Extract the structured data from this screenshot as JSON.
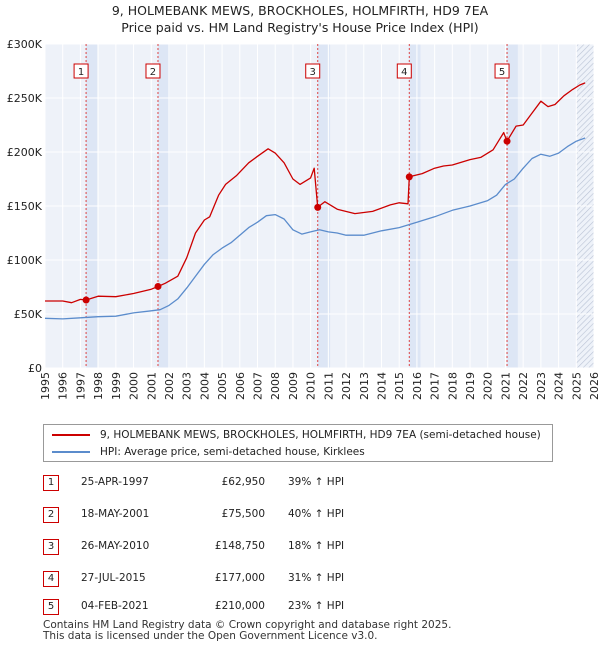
{
  "title_line1": "9, HOLMEBANK MEWS, BROCKHOLES, HOLMFIRTH, HD9 7EA",
  "title_line2": "Price paid vs. HM Land Registry's House Price Index (HPI)",
  "colors": {
    "price": "#cc0000",
    "hpi": "#5b8ccc",
    "shade": "#dde6f5",
    "vline": "#dd4444",
    "grid": "#ffffff"
  },
  "chart_data": {
    "type": "line",
    "xlabel": "",
    "ylabel": "",
    "xlim": [
      1995.0,
      2026.0
    ],
    "ylim": [
      0,
      300000
    ],
    "y_ticks": [
      0,
      50000,
      100000,
      150000,
      200000,
      250000,
      300000
    ],
    "y_tick_labels": [
      "£0",
      "£50K",
      "£100K",
      "£150K",
      "£200K",
      "£250K",
      "£300K"
    ],
    "x_ticks": [
      1995,
      1996,
      1997,
      1998,
      1999,
      2000,
      2001,
      2002,
      2003,
      2004,
      2005,
      2006,
      2007,
      2008,
      2009,
      2010,
      2011,
      2012,
      2013,
      2014,
      2015,
      2016,
      2017,
      2018,
      2019,
      2020,
      2021,
      2022,
      2023,
      2024,
      2025,
      2026
    ],
    "x_tick_labels": [
      "1995",
      "1996",
      "1997",
      "1998",
      "1999",
      "2000",
      "2001",
      "2002",
      "2003",
      "2004",
      "2005",
      "2006",
      "2007",
      "2008",
      "2009",
      "2010",
      "2011",
      "2012",
      "2013",
      "2014",
      "2015",
      "2016",
      "2017",
      "2018",
      "2019",
      "2020",
      "2021",
      "2022",
      "2023",
      "2024",
      "2025",
      "2026"
    ],
    "shaded_ranges": [
      [
        1997.32,
        1997.95
      ],
      [
        2001.38,
        2002.05
      ],
      [
        2010.4,
        2011.1
      ],
      [
        2015.57,
        2016.2
      ],
      [
        2021.09,
        2021.7
      ]
    ],
    "projection_start": 2025.0,
    "series": [
      {
        "name": "9, HOLMEBANK MEWS, BROCKHOLES, HOLMFIRTH, HD9 7EA (semi-detached house)",
        "points": [
          [
            1995.0,
            62000
          ],
          [
            1996.0,
            62000
          ],
          [
            1996.5,
            60500
          ],
          [
            1997.0,
            63500
          ],
          [
            1997.32,
            62950
          ],
          [
            1998.0,
            66500
          ],
          [
            1999.0,
            66000
          ],
          [
            2000.0,
            69000
          ],
          [
            2001.0,
            73000
          ],
          [
            2001.38,
            75500
          ],
          [
            2001.8,
            78500
          ],
          [
            2002.5,
            85000
          ],
          [
            2003.0,
            102000
          ],
          [
            2003.5,
            125000
          ],
          [
            2004.0,
            137000
          ],
          [
            2004.3,
            140000
          ],
          [
            2004.8,
            160000
          ],
          [
            2005.2,
            170000
          ],
          [
            2005.8,
            178000
          ],
          [
            2006.5,
            190000
          ],
          [
            2007.0,
            196000
          ],
          [
            2007.6,
            203000
          ],
          [
            2008.0,
            199000
          ],
          [
            2008.5,
            190000
          ],
          [
            2009.0,
            175000
          ],
          [
            2009.4,
            170000
          ],
          [
            2010.0,
            176000
          ],
          [
            2010.2,
            185000
          ],
          [
            2010.4,
            148750
          ],
          [
            2010.8,
            154000
          ],
          [
            2011.5,
            147000
          ],
          [
            2012.5,
            143000
          ],
          [
            2013.5,
            145000
          ],
          [
            2014.5,
            151000
          ],
          [
            2015.0,
            153000
          ],
          [
            2015.5,
            152000
          ],
          [
            2015.57,
            177000
          ],
          [
            2016.3,
            180000
          ],
          [
            2017.0,
            185000
          ],
          [
            2017.5,
            187000
          ],
          [
            2018.0,
            188000
          ],
          [
            2019.0,
            193000
          ],
          [
            2019.6,
            195000
          ],
          [
            2020.3,
            202000
          ],
          [
            2020.6,
            210000
          ],
          [
            2020.9,
            218000
          ],
          [
            2021.09,
            210000
          ],
          [
            2021.6,
            224000
          ],
          [
            2022.0,
            225000
          ],
          [
            2022.5,
            236000
          ],
          [
            2023.0,
            247000
          ],
          [
            2023.4,
            242000
          ],
          [
            2023.8,
            244000
          ],
          [
            2024.3,
            252000
          ],
          [
            2024.8,
            258000
          ],
          [
            2025.2,
            262000
          ],
          [
            2025.5,
            264000
          ]
        ]
      },
      {
        "name": "HPI: Average price, semi-detached house, Kirklees",
        "points": [
          [
            1995.0,
            46000
          ],
          [
            1996.0,
            45500
          ],
          [
            1997.0,
            46500
          ],
          [
            1998.0,
            47500
          ],
          [
            1999.0,
            48000
          ],
          [
            2000.0,
            51000
          ],
          [
            2001.0,
            53000
          ],
          [
            2001.5,
            54000
          ],
          [
            2002.0,
            58000
          ],
          [
            2002.5,
            64000
          ],
          [
            2003.0,
            74000
          ],
          [
            2003.5,
            85000
          ],
          [
            2004.0,
            96000
          ],
          [
            2004.5,
            105000
          ],
          [
            2005.0,
            111000
          ],
          [
            2005.5,
            116000
          ],
          [
            2006.0,
            123000
          ],
          [
            2006.5,
            130000
          ],
          [
            2007.0,
            135000
          ],
          [
            2007.5,
            141000
          ],
          [
            2008.0,
            142000
          ],
          [
            2008.5,
            138000
          ],
          [
            2009.0,
            128000
          ],
          [
            2009.5,
            124000
          ],
          [
            2010.0,
            126000
          ],
          [
            2010.5,
            128000
          ],
          [
            2011.0,
            126000
          ],
          [
            2011.5,
            125000
          ],
          [
            2012.0,
            123000
          ],
          [
            2013.0,
            123000
          ],
          [
            2014.0,
            127000
          ],
          [
            2015.0,
            130000
          ],
          [
            2016.0,
            135000
          ],
          [
            2017.0,
            140000
          ],
          [
            2018.0,
            146000
          ],
          [
            2019.0,
            150000
          ],
          [
            2020.0,
            155000
          ],
          [
            2020.5,
            160000
          ],
          [
            2021.0,
            170000
          ],
          [
            2021.5,
            175000
          ],
          [
            2022.0,
            185000
          ],
          [
            2022.5,
            194000
          ],
          [
            2023.0,
            198000
          ],
          [
            2023.5,
            196000
          ],
          [
            2024.0,
            199000
          ],
          [
            2024.5,
            205000
          ],
          [
            2025.0,
            210000
          ],
          [
            2025.5,
            213000
          ]
        ]
      }
    ],
    "sales": [
      {
        "label": "1",
        "x": 1997.32,
        "y": 62950
      },
      {
        "label": "2",
        "x": 2001.38,
        "y": 75500
      },
      {
        "label": "3",
        "x": 2010.4,
        "y": 148750
      },
      {
        "label": "4",
        "x": 2015.57,
        "y": 177000
      },
      {
        "label": "5",
        "x": 2021.09,
        "y": 210000
      }
    ]
  },
  "legend": {
    "price": "9, HOLMEBANK MEWS, BROCKHOLES, HOLMFIRTH, HD9 7EA (semi-detached house)",
    "hpi": "HPI: Average price, semi-detached house, Kirklees"
  },
  "transactions": [
    {
      "num": "1",
      "date": "25-APR-1997",
      "price": "£62,950",
      "hpi": "39% ↑ HPI"
    },
    {
      "num": "2",
      "date": "18-MAY-2001",
      "price": "£75,500",
      "hpi": "40% ↑ HPI"
    },
    {
      "num": "3",
      "date": "26-MAY-2010",
      "price": "£148,750",
      "hpi": "18% ↑ HPI"
    },
    {
      "num": "4",
      "date": "27-JUL-2015",
      "price": "£177,000",
      "hpi": "31% ↑ HPI"
    },
    {
      "num": "5",
      "date": "04-FEB-2021",
      "price": "£210,000",
      "hpi": "23% ↑ HPI"
    }
  ],
  "footer_line1": "Contains HM Land Registry data © Crown copyright and database right 2025.",
  "footer_line2": "This data is licensed under the Open Government Licence v3.0."
}
